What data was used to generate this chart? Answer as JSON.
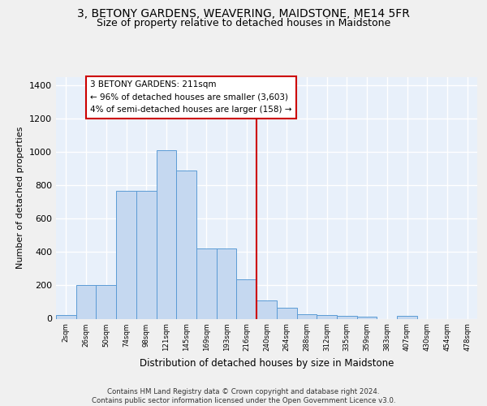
{
  "title": "3, BETONY GARDENS, WEAVERING, MAIDSTONE, ME14 5FR",
  "subtitle": "Size of property relative to detached houses in Maidstone",
  "xlabel": "Distribution of detached houses by size in Maidstone",
  "ylabel": "Number of detached properties",
  "bin_labels": [
    "2sqm",
    "26sqm",
    "50sqm",
    "74sqm",
    "98sqm",
    "121sqm",
    "145sqm",
    "169sqm",
    "193sqm",
    "216sqm",
    "240sqm",
    "264sqm",
    "288sqm",
    "312sqm",
    "335sqm",
    "359sqm",
    "383sqm",
    "407sqm",
    "430sqm",
    "454sqm",
    "478sqm"
  ],
  "bar_heights": [
    20,
    200,
    200,
    770,
    770,
    1010,
    890,
    420,
    420,
    235,
    110,
    65,
    25,
    20,
    15,
    10,
    0,
    15,
    0,
    0,
    0
  ],
  "bar_color": "#c5d8f0",
  "bar_edge_color": "#5b9bd5",
  "vline_x": 9.5,
  "vline_color": "#cc0000",
  "annotation_text": "3 BETONY GARDENS: 211sqm\n← 96% of detached houses are smaller (3,603)\n4% of semi-detached houses are larger (158) →",
  "ylim": [
    0,
    1450
  ],
  "yticks": [
    0,
    200,
    400,
    600,
    800,
    1000,
    1200,
    1400
  ],
  "footer_text": "Contains HM Land Registry data © Crown copyright and database right 2024.\nContains public sector information licensed under the Open Government Licence v3.0.",
  "bg_color": "#e8f0fa",
  "fig_bg_color": "#f0f0f0",
  "grid_color": "#ffffff",
  "title_fontsize": 10,
  "subtitle_fontsize": 9
}
